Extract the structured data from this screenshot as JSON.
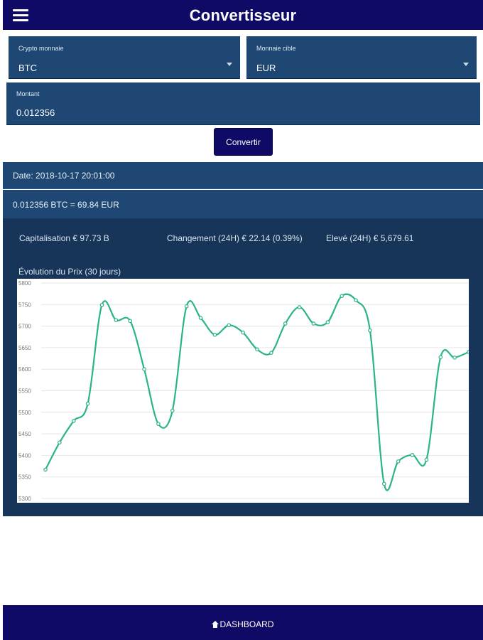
{
  "header": {
    "title": "Convertisseur",
    "menu_icon": "hamburger-menu-icon"
  },
  "form": {
    "crypto": {
      "label": "Crypto monnaie",
      "value": "BTC"
    },
    "target": {
      "label": "Monnaie cible",
      "value": "EUR"
    },
    "amount": {
      "label": "Montant",
      "value": "0.012356"
    },
    "convert_label": "Convertir"
  },
  "result": {
    "date": "Date: 2018-10-17 20:01:00",
    "conversion": "0.012356 BTC = 69.84 EUR"
  },
  "stats": {
    "capitalisation": "Capitalisation € 97.73 B",
    "change": "Changement (24H) € 22.14 (0.39%)",
    "high": "Elevé (24H) € 5,679.61"
  },
  "chart_data": {
    "type": "line",
    "title": "Évolution du Prix (30 jours)",
    "ylim": [
      5300,
      5800
    ],
    "yticks": [
      "5300",
      "5350",
      "5400",
      "5450",
      "5500",
      "5550",
      "5600",
      "5650",
      "5700",
      "5750",
      "5800"
    ],
    "grid": true,
    "series": [
      {
        "color": "#2bb38b",
        "values": [
          5367,
          5430,
          5480,
          5520,
          5749,
          5714,
          5712,
          5600,
          5473,
          5504,
          5746,
          5719,
          5680,
          5702,
          5685,
          5646,
          5638,
          5706,
          5744,
          5706,
          5709,
          5770,
          5760,
          5690,
          5334,
          5386,
          5401,
          5390,
          5628,
          5627,
          5640
        ]
      }
    ]
  },
  "footer": {
    "dashboard_label": "DASHBOARD",
    "icon": "home-icon"
  }
}
